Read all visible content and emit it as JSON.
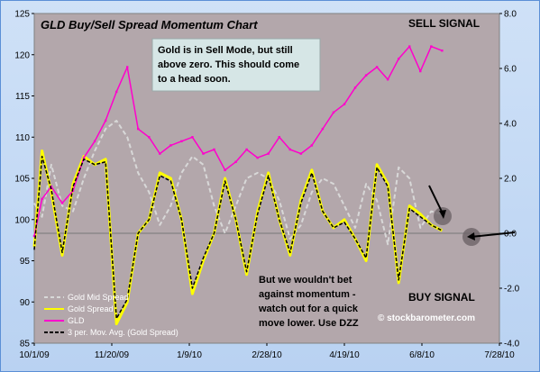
{
  "chart_data": {
    "type": "line",
    "title": "GLD Buy/Sell Spread Momentum Chart",
    "x_tick_labels": [
      "10/1/09",
      "11/20/09",
      "1/9/10",
      "2/28/10",
      "4/19/10",
      "6/8/10",
      "7/28/10"
    ],
    "x_range": [
      "2009-10-01",
      "2010-07-28"
    ],
    "y_left_range": [
      85,
      125
    ],
    "y_left_ticks": [
      85,
      90,
      95,
      100,
      105,
      110,
      115,
      120,
      125
    ],
    "y_right_range": [
      -4.0,
      8.0
    ],
    "y_right_ticks": [
      "-4.0",
      "-2.0",
      "0.0",
      "2.0",
      "4.0",
      "6.0",
      "8.0"
    ],
    "grid": false,
    "legend_position": "bottom-left",
    "series": [
      {
        "name": "Gold Mid Spread",
        "axis": "right",
        "color": "#d8d8d8",
        "x": [
          "2009-10-01",
          "2009-10-06",
          "2009-10-12",
          "2009-10-19",
          "2009-10-26",
          "2009-11-02",
          "2009-11-09",
          "2009-11-16",
          "2009-11-23",
          "2009-11-30",
          "2009-12-07",
          "2009-12-14",
          "2009-12-21",
          "2009-12-28",
          "2010-01-04",
          "2010-01-11",
          "2010-01-18",
          "2010-01-25",
          "2010-02-01",
          "2010-02-08",
          "2010-02-15",
          "2010-02-22",
          "2010-03-01",
          "2010-03-08",
          "2010-03-15",
          "2010-03-22",
          "2010-03-29",
          "2010-04-05",
          "2010-04-12",
          "2010-04-19",
          "2010-04-26",
          "2010-05-03",
          "2010-05-10",
          "2010-05-17",
          "2010-05-24",
          "2010-05-31",
          "2010-06-07",
          "2010-06-14",
          "2010-06-21"
        ],
        "values": [
          1.1,
          0.6,
          2.5,
          1.0,
          0.8,
          2.0,
          3.0,
          3.8,
          4.1,
          3.5,
          2.2,
          1.5,
          0.3,
          1.0,
          2.2,
          2.8,
          2.5,
          1.0,
          0.0,
          1.0,
          2.0,
          2.2,
          2.0,
          1.2,
          -0.2,
          0.3,
          1.5,
          2.0,
          1.8,
          1.0,
          0.2,
          1.8,
          1.2,
          -0.4,
          2.4,
          2.0,
          0.2,
          0.8,
          0.7
        ]
      },
      {
        "name": "Gold  Spread",
        "axis": "right",
        "color": "#ffff00",
        "x": [
          "2009-10-01",
          "2009-10-06",
          "2009-10-12",
          "2009-10-19",
          "2009-10-26",
          "2009-11-02",
          "2009-11-09",
          "2009-11-16",
          "2009-11-23",
          "2009-11-30",
          "2009-12-07",
          "2009-12-14",
          "2009-12-21",
          "2009-12-28",
          "2010-01-04",
          "2010-01-11",
          "2010-01-18",
          "2010-01-25",
          "2010-02-01",
          "2010-02-08",
          "2010-02-15",
          "2010-02-22",
          "2010-03-01",
          "2010-03-08",
          "2010-03-15",
          "2010-03-22",
          "2010-03-29",
          "2010-04-05",
          "2010-04-12",
          "2010-04-19",
          "2010-04-26",
          "2010-05-03",
          "2010-05-10",
          "2010-05-17",
          "2010-05-24",
          "2010-05-31",
          "2010-06-07",
          "2010-06-14",
          "2010-06-21"
        ],
        "values": [
          -0.5,
          3.0,
          1.5,
          -0.8,
          1.8,
          2.8,
          2.5,
          2.7,
          -3.3,
          -2.5,
          0.0,
          0.5,
          2.2,
          2.0,
          0.5,
          -2.2,
          -1.0,
          0.0,
          2.0,
          0.5,
          -1.5,
          0.8,
          2.2,
          0.5,
          -0.8,
          1.2,
          2.3,
          0.8,
          0.2,
          0.5,
          -0.2,
          -1.0,
          2.5,
          1.8,
          -1.8,
          1.0,
          0.7,
          0.3,
          0.1
        ]
      },
      {
        "name": "GLD",
        "axis": "left",
        "color": "#ff00cc",
        "x": [
          "2009-10-01",
          "2009-10-06",
          "2009-10-12",
          "2009-10-19",
          "2009-10-26",
          "2009-11-02",
          "2009-11-09",
          "2009-11-16",
          "2009-11-23",
          "2009-11-30",
          "2009-12-07",
          "2009-12-14",
          "2009-12-21",
          "2009-12-28",
          "2010-01-04",
          "2010-01-11",
          "2010-01-18",
          "2010-01-25",
          "2010-02-01",
          "2010-02-08",
          "2010-02-15",
          "2010-02-22",
          "2010-03-01",
          "2010-03-08",
          "2010-03-15",
          "2010-03-22",
          "2010-03-29",
          "2010-04-05",
          "2010-04-12",
          "2010-04-19",
          "2010-04-26",
          "2010-05-03",
          "2010-05-10",
          "2010-05-17",
          "2010-05-24",
          "2010-05-31",
          "2010-06-07",
          "2010-06-14",
          "2010-06-21"
        ],
        "values": [
          98,
          102.5,
          104,
          102,
          103.5,
          107.5,
          109.5,
          112,
          115.5,
          118.5,
          111,
          110,
          108,
          109,
          109.5,
          110,
          108,
          108.5,
          106,
          107,
          108.5,
          107.5,
          108,
          110,
          108.5,
          108,
          109,
          111,
          113,
          114,
          116,
          117.5,
          118.5,
          117,
          119.5,
          121,
          118,
          121,
          120.5
        ]
      },
      {
        "name": "3 per. Mov. Avg. (Gold  Spread)",
        "axis": "right",
        "color": "#000000",
        "x": [
          "2009-10-01",
          "2009-10-06",
          "2009-10-12",
          "2009-10-19",
          "2009-10-26",
          "2009-11-02",
          "2009-11-09",
          "2009-11-16",
          "2009-11-23",
          "2009-11-30",
          "2009-12-07",
          "2009-12-14",
          "2009-12-21",
          "2009-12-28",
          "2010-01-04",
          "2010-01-11",
          "2010-01-18",
          "2010-01-25",
          "2010-02-01",
          "2010-02-08",
          "2010-02-15",
          "2010-02-22",
          "2010-03-01",
          "2010-03-08",
          "2010-03-15",
          "2010-03-22",
          "2010-03-29",
          "2010-04-05",
          "2010-04-12",
          "2010-04-19",
          "2010-04-26",
          "2010-05-03",
          "2010-05-10",
          "2010-05-17",
          "2010-05-24",
          "2010-05-31",
          "2010-06-07",
          "2010-06-14",
          "2010-06-21"
        ],
        "values": [
          -0.6,
          2.8,
          1.6,
          -0.7,
          1.7,
          2.7,
          2.5,
          2.6,
          -3.1,
          -2.4,
          0.0,
          0.5,
          2.1,
          1.9,
          0.5,
          -2.0,
          -0.9,
          0.0,
          1.9,
          0.5,
          -1.4,
          0.7,
          2.1,
          0.5,
          -0.7,
          1.1,
          2.2,
          0.8,
          0.2,
          0.4,
          -0.2,
          -0.9,
          2.4,
          1.7,
          -1.7,
          0.9,
          0.6,
          0.3,
          0.1
        ]
      }
    ],
    "annotations": {
      "sell_signal": "SELL SIGNAL",
      "buy_signal": "BUY SIGNAL",
      "note_top": [
        "Gold is in Sell Mode, but still",
        "above zero.  This should come",
        "to a head soon."
      ],
      "note_bottom": [
        "But we wouldn't bet",
        "against momentum -",
        "watch out for a quick",
        "move lower.  Use DZZ"
      ],
      "watermark": "© stockbarometer.com"
    }
  }
}
